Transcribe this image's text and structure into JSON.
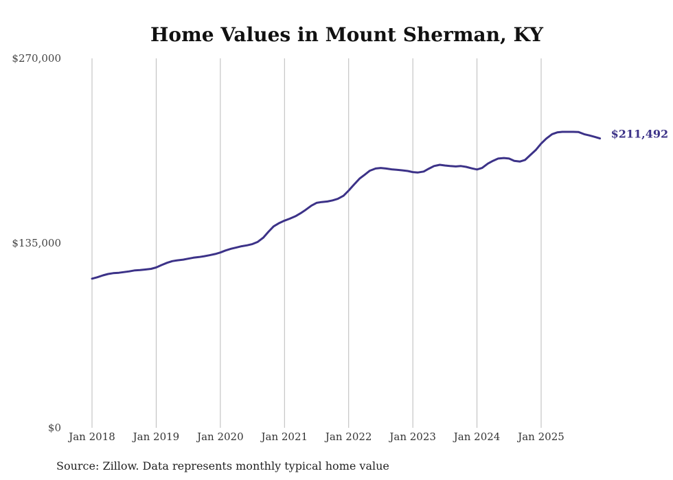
{
  "chart_data": {
    "type": "line",
    "title": "Home Values in Mount Sherman, KY",
    "xlabel": "",
    "ylabel": "",
    "ylim": [
      0,
      270000
    ],
    "yticks": [
      {
        "value": 0,
        "label": "$0"
      },
      {
        "value": 135000,
        "label": "$135,000"
      },
      {
        "value": 270000,
        "label": "$270,000"
      }
    ],
    "xlim": [
      2018.0,
      2025.9167
    ],
    "xticks": [
      {
        "value": 2018,
        "label": "Jan 2018"
      },
      {
        "value": 2019,
        "label": "Jan 2019"
      },
      {
        "value": 2020,
        "label": "Jan 2020"
      },
      {
        "value": 2021,
        "label": "Jan 2021"
      },
      {
        "value": 2022,
        "label": "Jan 2022"
      },
      {
        "value": 2023,
        "label": "Jan 2023"
      },
      {
        "value": 2024,
        "label": "Jan 2024"
      },
      {
        "value": 2025,
        "label": "Jan 2025"
      }
    ],
    "grid": "vertical",
    "series": [
      {
        "name": "Typical home value",
        "color": "#3c3288",
        "end_label": "$211,492",
        "points": [
          [
            2018.0,
            109000
          ],
          [
            2018.08,
            110000
          ],
          [
            2018.17,
            111400
          ],
          [
            2018.25,
            112400
          ],
          [
            2018.33,
            113000
          ],
          [
            2018.42,
            113300
          ],
          [
            2018.5,
            113800
          ],
          [
            2018.58,
            114300
          ],
          [
            2018.67,
            115100
          ],
          [
            2018.75,
            115300
          ],
          [
            2018.83,
            115700
          ],
          [
            2018.92,
            116200
          ],
          [
            2019.0,
            117200
          ],
          [
            2019.08,
            118900
          ],
          [
            2019.17,
            120600
          ],
          [
            2019.25,
            121800
          ],
          [
            2019.33,
            122400
          ],
          [
            2019.42,
            122900
          ],
          [
            2019.5,
            123600
          ],
          [
            2019.58,
            124300
          ],
          [
            2019.67,
            124800
          ],
          [
            2019.75,
            125400
          ],
          [
            2019.83,
            126100
          ],
          [
            2019.92,
            127000
          ],
          [
            2020.0,
            128100
          ],
          [
            2020.08,
            129600
          ],
          [
            2020.17,
            130900
          ],
          [
            2020.25,
            131800
          ],
          [
            2020.33,
            132700
          ],
          [
            2020.42,
            133400
          ],
          [
            2020.5,
            134300
          ],
          [
            2020.58,
            135800
          ],
          [
            2020.67,
            139000
          ],
          [
            2020.75,
            143300
          ],
          [
            2020.83,
            147200
          ],
          [
            2020.92,
            149700
          ],
          [
            2021.0,
            151400
          ],
          [
            2021.08,
            152800
          ],
          [
            2021.17,
            154600
          ],
          [
            2021.25,
            156800
          ],
          [
            2021.33,
            159300
          ],
          [
            2021.42,
            162400
          ],
          [
            2021.5,
            164400
          ],
          [
            2021.58,
            165000
          ],
          [
            2021.67,
            165400
          ],
          [
            2021.75,
            166200
          ],
          [
            2021.83,
            167300
          ],
          [
            2021.92,
            169600
          ],
          [
            2022.0,
            173400
          ],
          [
            2022.08,
            177600
          ],
          [
            2022.17,
            182100
          ],
          [
            2022.25,
            185000
          ],
          [
            2022.33,
            187900
          ],
          [
            2022.42,
            189500
          ],
          [
            2022.5,
            189900
          ],
          [
            2022.58,
            189500
          ],
          [
            2022.67,
            188900
          ],
          [
            2022.75,
            188600
          ],
          [
            2022.83,
            188200
          ],
          [
            2022.92,
            187700
          ],
          [
            2023.0,
            186900
          ],
          [
            2023.08,
            186600
          ],
          [
            2023.17,
            187300
          ],
          [
            2023.25,
            189400
          ],
          [
            2023.33,
            191300
          ],
          [
            2023.42,
            192200
          ],
          [
            2023.5,
            191700
          ],
          [
            2023.58,
            191300
          ],
          [
            2023.67,
            191000
          ],
          [
            2023.75,
            191300
          ],
          [
            2023.83,
            190700
          ],
          [
            2023.92,
            189600
          ],
          [
            2024.0,
            188800
          ],
          [
            2024.08,
            189900
          ],
          [
            2024.17,
            193100
          ],
          [
            2024.25,
            195100
          ],
          [
            2024.33,
            196800
          ],
          [
            2024.42,
            197200
          ],
          [
            2024.5,
            196800
          ],
          [
            2024.58,
            195100
          ],
          [
            2024.67,
            194600
          ],
          [
            2024.75,
            195800
          ],
          [
            2024.83,
            199300
          ],
          [
            2024.92,
            203200
          ],
          [
            2025.0,
            207700
          ],
          [
            2025.08,
            211400
          ],
          [
            2025.17,
            214600
          ],
          [
            2025.25,
            215900
          ],
          [
            2025.33,
            216300
          ],
          [
            2025.42,
            216300
          ],
          [
            2025.5,
            216300
          ],
          [
            2025.58,
            216200
          ],
          [
            2025.67,
            214600
          ],
          [
            2025.75,
            213700
          ],
          [
            2025.83,
            212700
          ],
          [
            2025.9167,
            211492
          ]
        ]
      }
    ]
  },
  "footer": {
    "source_text": "Source: Zillow. Data represents monthly typical home value"
  }
}
